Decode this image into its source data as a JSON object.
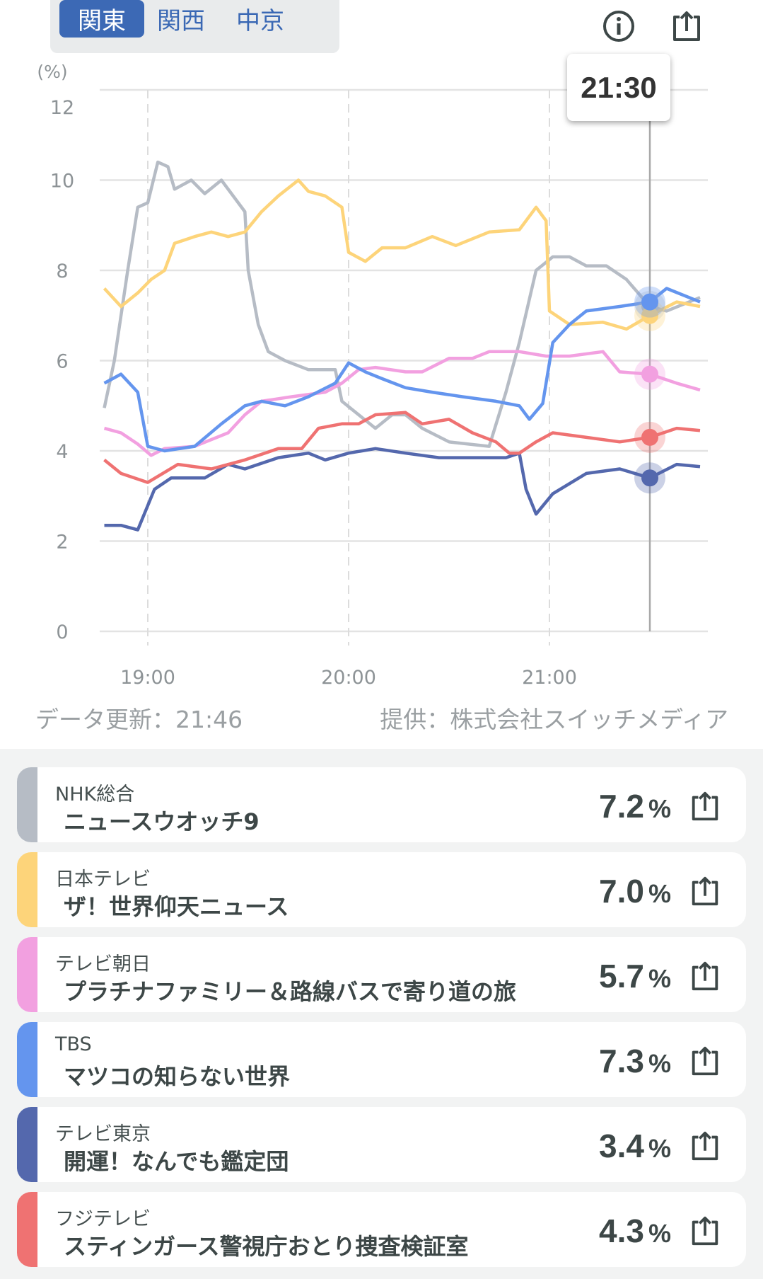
{
  "tabs": [
    {
      "label": "関東",
      "active": true
    },
    {
      "label": "関西",
      "active": false
    },
    {
      "label": "中京",
      "active": false
    }
  ],
  "icons": {
    "info": "info-icon",
    "share": "share-icon"
  },
  "tooltip_time": "21:30",
  "footer": {
    "updated": "データ更新：21:46",
    "provider": "提供：株式会社スイッチメディア"
  },
  "chart_data": {
    "type": "line",
    "ylabel": "(%)",
    "ylim": [
      0,
      12
    ],
    "yticks": [
      "0",
      "2",
      "4",
      "6",
      "8",
      "10",
      "12"
    ],
    "xticks": [
      "19:00",
      "20:00",
      "21:00"
    ],
    "xlim": [
      "18:47",
      "21:46"
    ],
    "cursor": "21:30",
    "series": [
      {
        "name": "NHK総合",
        "color": "#b6bcc5",
        "cursor_value": 7.2,
        "points": [
          [
            "18:47",
            4.95
          ],
          [
            "18:50",
            6.0
          ],
          [
            "18:54",
            8.0
          ],
          [
            "18:57",
            9.4
          ],
          [
            "19:00",
            9.5
          ],
          [
            "19:03",
            10.4
          ],
          [
            "19:06",
            10.3
          ],
          [
            "19:08",
            9.8
          ],
          [
            "19:13",
            10.0
          ],
          [
            "19:17",
            9.7
          ],
          [
            "19:22",
            10.0
          ],
          [
            "19:26",
            9.6
          ],
          [
            "19:29",
            9.3
          ],
          [
            "19:30",
            8.0
          ],
          [
            "19:33",
            6.8
          ],
          [
            "19:36",
            6.2
          ],
          [
            "19:41",
            6.0
          ],
          [
            "19:48",
            5.8
          ],
          [
            "19:56",
            5.8
          ],
          [
            "19:58",
            5.1
          ],
          [
            "20:03",
            4.8
          ],
          [
            "20:08",
            4.5
          ],
          [
            "20:13",
            4.8
          ],
          [
            "20:17",
            4.8
          ],
          [
            "20:22",
            4.5
          ],
          [
            "20:30",
            4.2
          ],
          [
            "20:42",
            4.1
          ],
          [
            "20:47",
            5.3
          ],
          [
            "20:51",
            6.4
          ],
          [
            "20:56",
            8.0
          ],
          [
            "21:01",
            8.3
          ],
          [
            "21:06",
            8.3
          ],
          [
            "21:11",
            8.1
          ],
          [
            "21:17",
            8.1
          ],
          [
            "21:23",
            7.8
          ],
          [
            "21:30",
            7.2
          ],
          [
            "21:35",
            7.1
          ],
          [
            "21:45",
            7.4
          ]
        ]
      },
      {
        "name": "日本テレビ",
        "color": "#fdd47a",
        "cursor_value": 7.0,
        "points": [
          [
            "18:47",
            7.6
          ],
          [
            "18:52",
            7.2
          ],
          [
            "18:57",
            7.5
          ],
          [
            "19:01",
            7.8
          ],
          [
            "19:05",
            8.0
          ],
          [
            "19:08",
            8.6
          ],
          [
            "19:14",
            8.75
          ],
          [
            "19:19",
            8.85
          ],
          [
            "19:24",
            8.75
          ],
          [
            "19:29",
            8.85
          ],
          [
            "19:34",
            9.3
          ],
          [
            "19:39",
            9.65
          ],
          [
            "19:45",
            10.0
          ],
          [
            "19:48",
            9.75
          ],
          [
            "19:53",
            9.65
          ],
          [
            "19:58",
            9.4
          ],
          [
            "20:00",
            8.4
          ],
          [
            "20:05",
            8.2
          ],
          [
            "20:10",
            8.5
          ],
          [
            "20:17",
            8.5
          ],
          [
            "20:25",
            8.75
          ],
          [
            "20:32",
            8.55
          ],
          [
            "20:42",
            8.85
          ],
          [
            "20:51",
            8.9
          ],
          [
            "20:56",
            9.4
          ],
          [
            "20:59",
            9.1
          ],
          [
            "21:00",
            7.1
          ],
          [
            "21:06",
            6.8
          ],
          [
            "21:16",
            6.85
          ],
          [
            "21:23",
            6.7
          ],
          [
            "21:30",
            7.0
          ],
          [
            "21:38",
            7.3
          ],
          [
            "21:45",
            7.2
          ]
        ]
      },
      {
        "name": "テレビ朝日",
        "color": "#f2a0e0",
        "cursor_value": 5.7,
        "points": [
          [
            "18:47",
            4.5
          ],
          [
            "18:52",
            4.4
          ],
          [
            "18:57",
            4.15
          ],
          [
            "19:01",
            3.9
          ],
          [
            "19:05",
            4.05
          ],
          [
            "19:14",
            4.1
          ],
          [
            "19:24",
            4.4
          ],
          [
            "19:29",
            4.8
          ],
          [
            "19:34",
            5.1
          ],
          [
            "19:43",
            5.2
          ],
          [
            "19:53",
            5.3
          ],
          [
            "19:58",
            5.5
          ],
          [
            "20:03",
            5.8
          ],
          [
            "20:08",
            5.85
          ],
          [
            "20:17",
            5.75
          ],
          [
            "20:22",
            5.75
          ],
          [
            "20:30",
            6.05
          ],
          [
            "20:37",
            6.05
          ],
          [
            "20:42",
            6.2
          ],
          [
            "20:51",
            6.2
          ],
          [
            "20:59",
            6.1
          ],
          [
            "21:06",
            6.1
          ],
          [
            "21:16",
            6.2
          ],
          [
            "21:21",
            5.75
          ],
          [
            "21:30",
            5.7
          ],
          [
            "21:38",
            5.5
          ],
          [
            "21:45",
            5.35
          ]
        ]
      },
      {
        "name": "TBS",
        "color": "#6495ee",
        "cursor_value": 7.3,
        "points": [
          [
            "18:47",
            5.5
          ],
          [
            "18:52",
            5.7
          ],
          [
            "18:57",
            5.3
          ],
          [
            "19:00",
            4.1
          ],
          [
            "19:05",
            4.0
          ],
          [
            "19:14",
            4.1
          ],
          [
            "19:22",
            4.6
          ],
          [
            "19:29",
            5.0
          ],
          [
            "19:34",
            5.1
          ],
          [
            "19:41",
            5.0
          ],
          [
            "19:48",
            5.2
          ],
          [
            "19:56",
            5.5
          ],
          [
            "20:00",
            5.95
          ],
          [
            "20:05",
            5.75
          ],
          [
            "20:10",
            5.6
          ],
          [
            "20:17",
            5.4
          ],
          [
            "20:25",
            5.3
          ],
          [
            "20:34",
            5.2
          ],
          [
            "20:44",
            5.1
          ],
          [
            "20:51",
            5.0
          ],
          [
            "20:54",
            4.7
          ],
          [
            "20:58",
            5.05
          ],
          [
            "21:01",
            6.4
          ],
          [
            "21:06",
            6.8
          ],
          [
            "21:11",
            7.1
          ],
          [
            "21:21",
            7.2
          ],
          [
            "21:30",
            7.3
          ],
          [
            "21:35",
            7.6
          ],
          [
            "21:45",
            7.3
          ]
        ]
      },
      {
        "name": "テレビ東京",
        "color": "#5468ad",
        "cursor_value": 3.4,
        "points": [
          [
            "18:47",
            2.35
          ],
          [
            "18:52",
            2.35
          ],
          [
            "18:57",
            2.25
          ],
          [
            "19:02",
            3.15
          ],
          [
            "19:07",
            3.4
          ],
          [
            "19:17",
            3.4
          ],
          [
            "19:24",
            3.7
          ],
          [
            "19:29",
            3.6
          ],
          [
            "19:39",
            3.85
          ],
          [
            "19:48",
            3.95
          ],
          [
            "19:53",
            3.8
          ],
          [
            "20:00",
            3.95
          ],
          [
            "20:08",
            4.05
          ],
          [
            "20:17",
            3.95
          ],
          [
            "20:27",
            3.85
          ],
          [
            "20:37",
            3.85
          ],
          [
            "20:47",
            3.85
          ],
          [
            "20:51",
            3.95
          ],
          [
            "20:53",
            3.15
          ],
          [
            "20:56",
            2.6
          ],
          [
            "21:01",
            3.05
          ],
          [
            "21:11",
            3.5
          ],
          [
            "21:21",
            3.6
          ],
          [
            "21:30",
            3.4
          ],
          [
            "21:38",
            3.7
          ],
          [
            "21:45",
            3.65
          ]
        ]
      },
      {
        "name": "フジテレビ",
        "color": "#ef7272",
        "cursor_value": 4.3,
        "points": [
          [
            "18:47",
            3.8
          ],
          [
            "18:52",
            3.5
          ],
          [
            "19:00",
            3.3
          ],
          [
            "19:09",
            3.7
          ],
          [
            "19:19",
            3.6
          ],
          [
            "19:29",
            3.8
          ],
          [
            "19:39",
            4.05
          ],
          [
            "19:46",
            4.05
          ],
          [
            "19:51",
            4.5
          ],
          [
            "19:58",
            4.6
          ],
          [
            "20:03",
            4.6
          ],
          [
            "20:08",
            4.8
          ],
          [
            "20:17",
            4.85
          ],
          [
            "20:22",
            4.6
          ],
          [
            "20:30",
            4.7
          ],
          [
            "20:37",
            4.4
          ],
          [
            "20:44",
            4.2
          ],
          [
            "20:48",
            3.95
          ],
          [
            "20:51",
            3.95
          ],
          [
            "20:56",
            4.2
          ],
          [
            "21:01",
            4.4
          ],
          [
            "21:11",
            4.3
          ],
          [
            "21:21",
            4.2
          ],
          [
            "21:30",
            4.3
          ],
          [
            "21:38",
            4.5
          ],
          [
            "21:45",
            4.45
          ]
        ]
      }
    ]
  },
  "channels": [
    {
      "station": "NHK総合",
      "program": "ニュースウオッチ9",
      "value": "7.2",
      "unit": "%",
      "color": "#b6bcc5"
    },
    {
      "station": "日本テレビ",
      "program": "ザ！世界仰天ニュース",
      "value": "7.0",
      "unit": "%",
      "color": "#fdd47a"
    },
    {
      "station": "テレビ朝日",
      "program": "プラチナファミリー＆路線バスで寄り道の旅",
      "value": "5.7",
      "unit": "%",
      "color": "#f2a0e0"
    },
    {
      "station": "TBS",
      "program": "マツコの知らない世界",
      "value": "7.3",
      "unit": "%",
      "color": "#6495ee"
    },
    {
      "station": "テレビ東京",
      "program": "開運！なんでも鑑定団",
      "value": "3.4",
      "unit": "%",
      "color": "#5468ad"
    },
    {
      "station": "フジテレビ",
      "program": "スティンガース警視庁おとり捜査検証室",
      "value": "4.3",
      "unit": "%",
      "color": "#ef7272"
    }
  ]
}
